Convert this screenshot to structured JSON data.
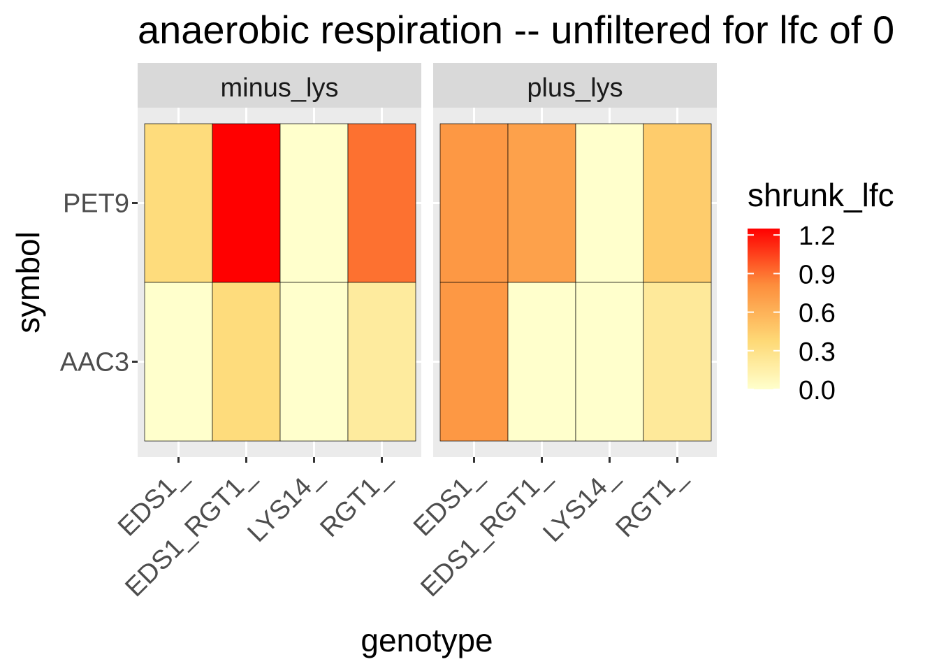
{
  "chart_data": {
    "type": "heatmap",
    "title": "anaerobic respiration -- unfiltered for lfc of 0",
    "xlabel": "genotype",
    "ylabel": "symbol",
    "facets": [
      "minus_lys",
      "plus_lys"
    ],
    "x_categories": [
      "EDS1_",
      "EDS1_RGT1_",
      "LYS14_",
      "RGT1_"
    ],
    "y_categories": [
      "PET9",
      "AAC3"
    ],
    "values": {
      "minus_lys": {
        "PET9": [
          0.35,
          1.25,
          0.0,
          0.9
        ],
        "AAC3": [
          0.0,
          0.35,
          0.0,
          0.2
        ]
      },
      "plus_lys": {
        "PET9": [
          0.75,
          0.7,
          0.0,
          0.45
        ],
        "AAC3": [
          0.75,
          0.0,
          0.0,
          0.22
        ]
      }
    },
    "legend": {
      "title": "shrunk_lfc",
      "ticks": [
        "1.2",
        "0.9",
        "0.6",
        "0.3",
        "0.0"
      ],
      "tick_values": [
        1.2,
        0.9,
        0.6,
        0.3,
        0.0
      ],
      "range": [
        0.0,
        1.25
      ],
      "position": "right"
    },
    "colors": {
      "low": "#ffffcc",
      "mid1": "#fed976",
      "mid2": "#fd8d3c",
      "high": "#ff0000",
      "panel_bg": "#ebebeb",
      "strip_bg": "#d9d9d9",
      "grid": "#ffffff"
    },
    "grid": true
  }
}
